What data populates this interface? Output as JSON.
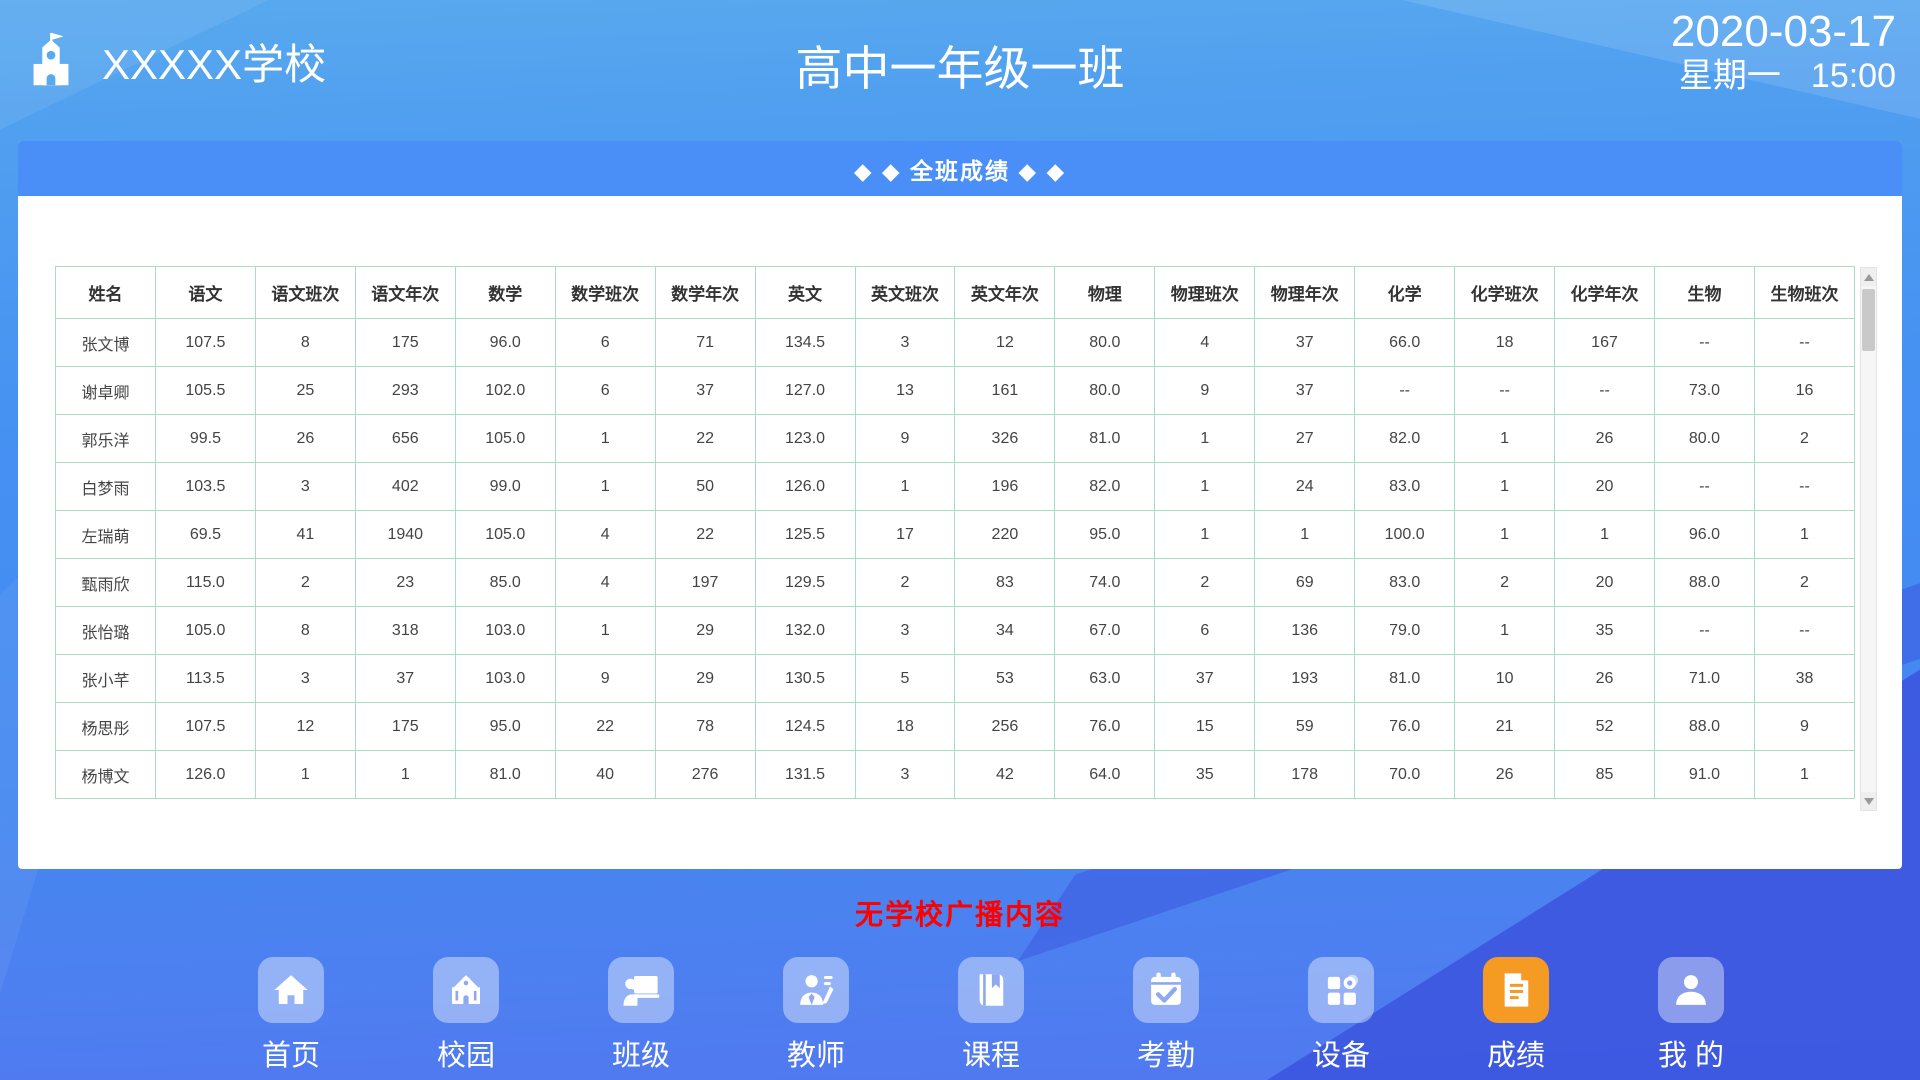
{
  "header": {
    "school_name": "XXXXX学校",
    "class_title": "高中一年级一班",
    "date": "2020-03-17",
    "weekday": "星期一",
    "time": "15:00"
  },
  "panel": {
    "title": "◆ ◆ 全班成绩 ◆ ◆"
  },
  "table": {
    "columns": [
      "姓名",
      "语文",
      "语文班次",
      "语文年次",
      "数学",
      "数学班次",
      "数学年次",
      "英文",
      "英文班次",
      "英文年次",
      "物理",
      "物理班次",
      "物理年次",
      "化学",
      "化学班次",
      "化学年次",
      "生物",
      "生物班次"
    ],
    "rows": [
      [
        "张文博",
        "107.5",
        "8",
        "175",
        "96.0",
        "6",
        "71",
        "134.5",
        "3",
        "12",
        "80.0",
        "4",
        "37",
        "66.0",
        "18",
        "167",
        "--",
        "--"
      ],
      [
        "谢卓卿",
        "105.5",
        "25",
        "293",
        "102.0",
        "6",
        "37",
        "127.0",
        "13",
        "161",
        "80.0",
        "9",
        "37",
        "--",
        "--",
        "--",
        "73.0",
        "16"
      ],
      [
        "郭乐洋",
        "99.5",
        "26",
        "656",
        "105.0",
        "1",
        "22",
        "123.0",
        "9",
        "326",
        "81.0",
        "1",
        "27",
        "82.0",
        "1",
        "26",
        "80.0",
        "2"
      ],
      [
        "白梦雨",
        "103.5",
        "3",
        "402",
        "99.0",
        "1",
        "50",
        "126.0",
        "1",
        "196",
        "82.0",
        "1",
        "24",
        "83.0",
        "1",
        "20",
        "--",
        "--"
      ],
      [
        "左瑞萌",
        "69.5",
        "41",
        "1940",
        "105.0",
        "4",
        "22",
        "125.5",
        "17",
        "220",
        "95.0",
        "1",
        "1",
        "100.0",
        "1",
        "1",
        "96.0",
        "1"
      ],
      [
        "甄雨欣",
        "115.0",
        "2",
        "23",
        "85.0",
        "4",
        "197",
        "129.5",
        "2",
        "83",
        "74.0",
        "2",
        "69",
        "83.0",
        "2",
        "20",
        "88.0",
        "2"
      ],
      [
        "张怡璐",
        "105.0",
        "8",
        "318",
        "103.0",
        "1",
        "29",
        "132.0",
        "3",
        "34",
        "67.0",
        "6",
        "136",
        "79.0",
        "1",
        "35",
        "--",
        "--"
      ],
      [
        "张小芊",
        "113.5",
        "3",
        "37",
        "103.0",
        "9",
        "29",
        "130.5",
        "5",
        "53",
        "63.0",
        "37",
        "193",
        "81.0",
        "10",
        "26",
        "71.0",
        "38"
      ],
      [
        "杨思彤",
        "107.5",
        "12",
        "175",
        "95.0",
        "22",
        "78",
        "124.5",
        "18",
        "256",
        "76.0",
        "15",
        "59",
        "76.0",
        "21",
        "52",
        "88.0",
        "9"
      ],
      [
        "杨博文",
        "126.0",
        "1",
        "1",
        "81.0",
        "40",
        "276",
        "131.5",
        "3",
        "42",
        "64.0",
        "35",
        "178",
        "70.0",
        "26",
        "85",
        "91.0",
        "1"
      ]
    ]
  },
  "broadcast": {
    "message": "无学校广播内容"
  },
  "nav": {
    "items": [
      {
        "label": "首页",
        "icon": "home-icon",
        "active": false
      },
      {
        "label": "校园",
        "icon": "campus-icon",
        "active": false
      },
      {
        "label": "班级",
        "icon": "class-icon",
        "active": false
      },
      {
        "label": "教师",
        "icon": "teacher-icon",
        "active": false
      },
      {
        "label": "课程",
        "icon": "course-icon",
        "active": false
      },
      {
        "label": "考勤",
        "icon": "attendance-icon",
        "active": false
      },
      {
        "label": "设备",
        "icon": "device-icon",
        "active": false
      },
      {
        "label": "成绩",
        "icon": "grades-icon",
        "active": true
      },
      {
        "label": "我 的",
        "icon": "profile-icon",
        "active": false
      }
    ]
  },
  "colors": {
    "panel_header_bg": "#4a8ef8",
    "table_border": "#a9dec2",
    "active_nav": "#f59a23",
    "broadcast_red": "#ff0000",
    "header_bg": "#58a9ee",
    "body_bg": "#4488f1"
  }
}
